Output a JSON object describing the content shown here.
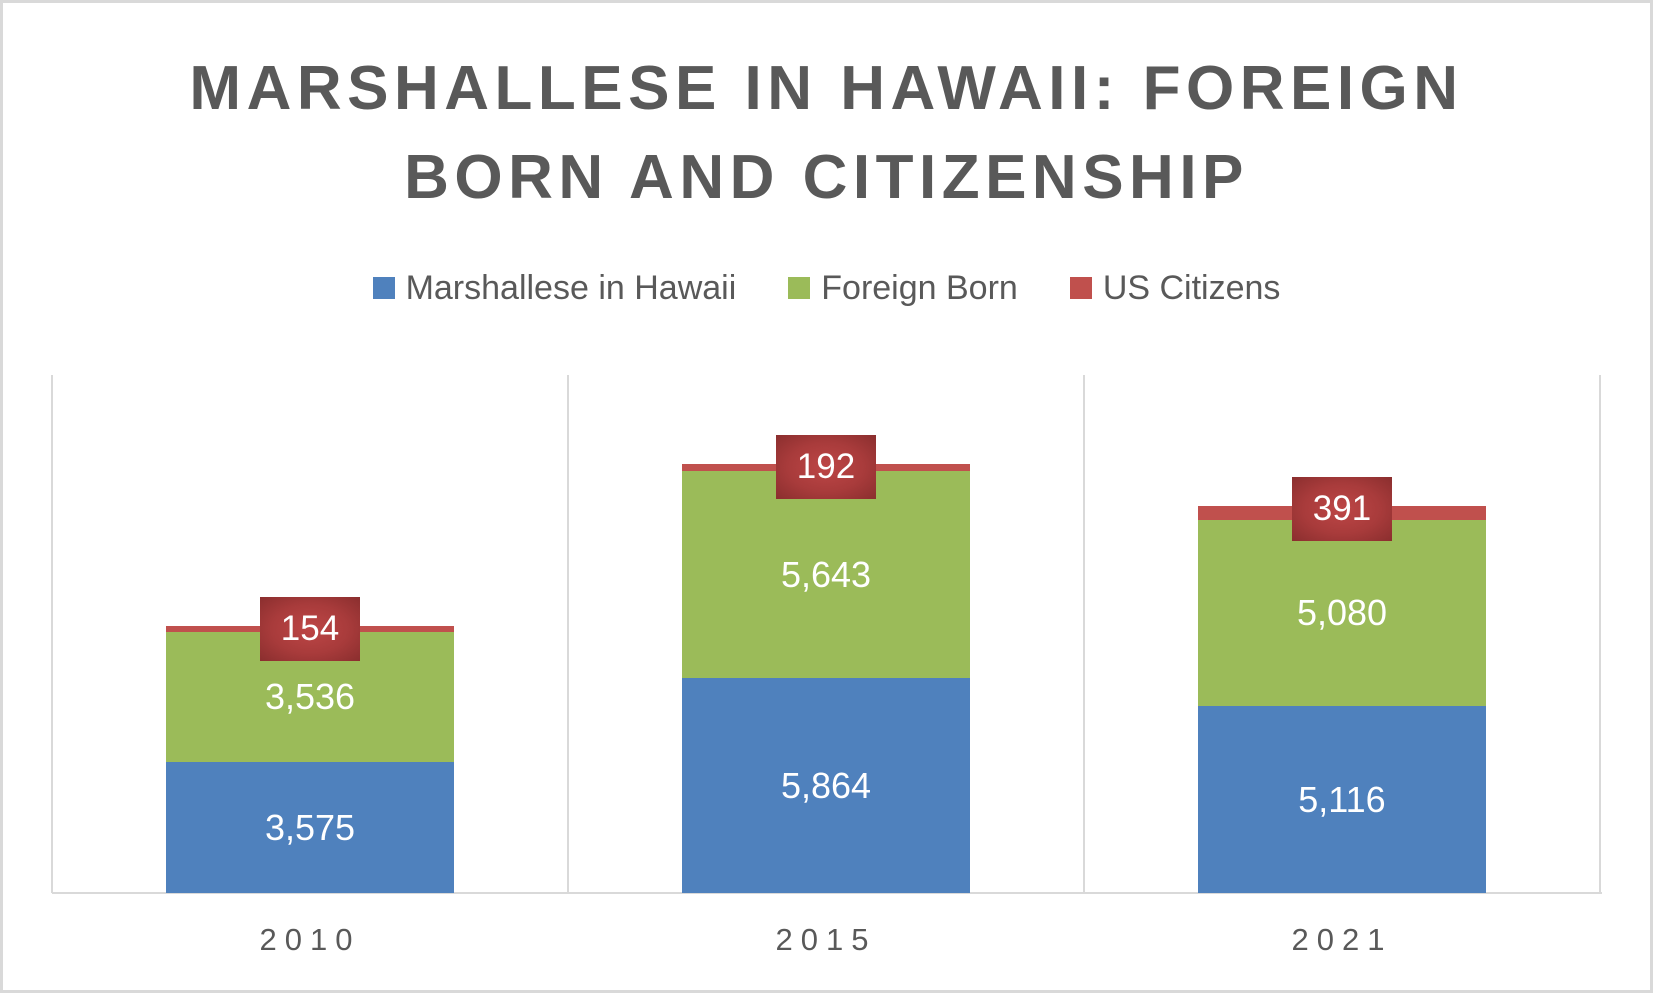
{
  "chart_data": {
    "type": "bar",
    "stacked": true,
    "title": "MARSHALLESE IN HAWAII: FOREIGN BORN AND CITIZENSHIP",
    "title_lines": [
      "MARSHALLESE IN HAWAII: FOREIGN",
      "BORN AND CITIZENSHIP"
    ],
    "xlabel": "",
    "ylabel": "",
    "categories": [
      "2010",
      "2015",
      "2021"
    ],
    "series": [
      {
        "name": "Marshallese in Hawaii",
        "color": "#4f81bd",
        "values": [
          3575,
          5864,
          5116
        ],
        "labels": [
          "3,575",
          "5,864",
          "5,116"
        ]
      },
      {
        "name": "Foreign Born",
        "color": "#9bbb59",
        "values": [
          3536,
          5643,
          5080
        ],
        "labels": [
          "3,536",
          "5,643",
          "5,080"
        ]
      },
      {
        "name": "US Citizens",
        "color": "#c0504d",
        "values": [
          154,
          192,
          391
        ],
        "labels": [
          "154",
          "192",
          "391"
        ]
      }
    ],
    "legend_position": "top",
    "grid": "vertical category separators",
    "y_axis_visible": false,
    "ylim": [
      0,
      14140
    ]
  },
  "colors": {
    "title_text": "#595959",
    "gridline": "#d9d9d9",
    "callout_bg": "#a83b3b"
  }
}
